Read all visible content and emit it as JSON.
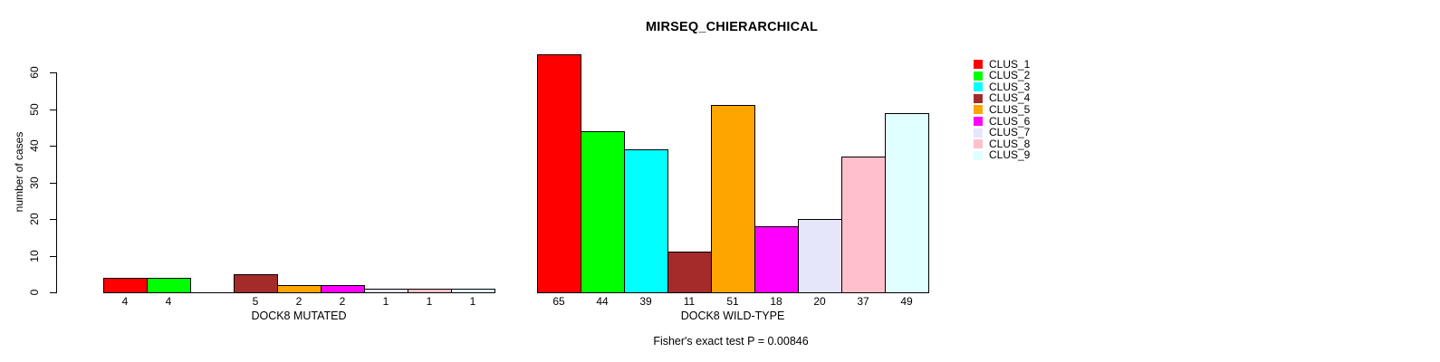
{
  "chart_data": {
    "type": "bar",
    "title": "MIRSEQ_CHIERARCHICAL",
    "xlabel": "",
    "ylabel": "number of cases",
    "ylim": [
      0,
      66
    ],
    "yticks": [
      0,
      10,
      20,
      30,
      40,
      50,
      60
    ],
    "grid": false,
    "legend_position": "right",
    "categories": [
      "DOCK8 MUTATED",
      "DOCK8 WILD-TYPE"
    ],
    "series": [
      {
        "name": "CLUS_1",
        "color": "#FF0000",
        "values": [
          4,
          65
        ]
      },
      {
        "name": "CLUS_2",
        "color": "#00FF00",
        "values": [
          4,
          44
        ]
      },
      {
        "name": "CLUS_3",
        "color": "#00FFFF",
        "values": [
          0,
          39
        ]
      },
      {
        "name": "CLUS_4",
        "color": "#A52A2A",
        "values": [
          5,
          11
        ]
      },
      {
        "name": "CLUS_5",
        "color": "#FFA500",
        "values": [
          2,
          51
        ]
      },
      {
        "name": "CLUS_6",
        "color": "#FF00FF",
        "values": [
          2,
          18
        ]
      },
      {
        "name": "CLUS_7",
        "color": "#E6E6FA",
        "values": [
          1,
          20
        ]
      },
      {
        "name": "CLUS_8",
        "color": "#FFC0CB",
        "values": [
          1,
          37
        ]
      },
      {
        "name": "CLUS_9",
        "color": "#E0FFFF",
        "values": [
          1,
          49
        ]
      }
    ],
    "bar_value_labels_shown": true,
    "zero_value_labels_hidden": true,
    "annotation": "Fisher's exact test P = 0.00846"
  }
}
